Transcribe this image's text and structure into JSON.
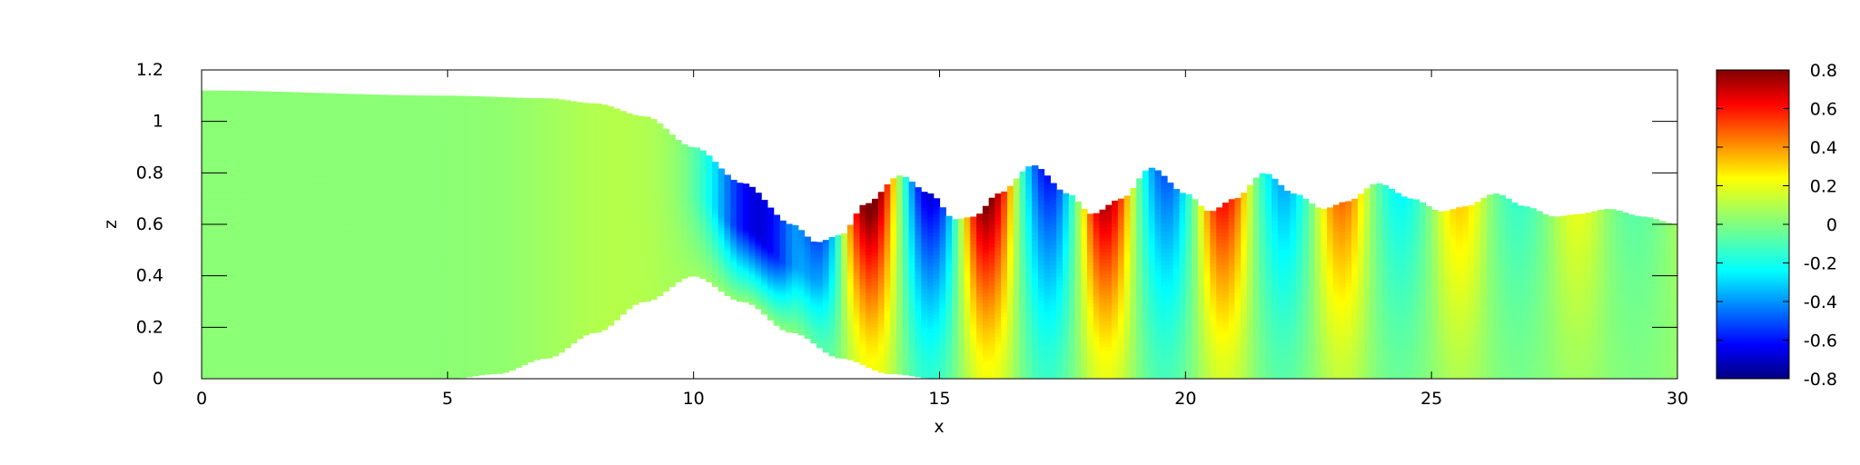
{
  "chart_data": {
    "type": "heatmap",
    "xlabel": "x",
    "ylabel": "z",
    "xlim": [
      0,
      30
    ],
    "ylim": [
      0,
      1.2
    ],
    "xticks": [
      "0",
      "5",
      "10",
      "15",
      "20",
      "25",
      "30"
    ],
    "yticks": [
      "0",
      "0.2",
      "0.4",
      "0.6",
      "0.8",
      "1",
      "1.2"
    ],
    "colorbar": {
      "range": [
        -0.8,
        0.8
      ],
      "ticks": [
        "-0.8",
        "-0.6",
        "-0.4",
        "-0.2",
        "0",
        "0.2",
        "0.4",
        "0.6",
        "0.8"
      ],
      "colormap": "jet"
    },
    "bottom_boundary": {
      "x": [
        0,
        5,
        6,
        7,
        8,
        9,
        10,
        11,
        12,
        13,
        14,
        15,
        30
      ],
      "z": [
        0,
        0,
        0.02,
        0.08,
        0.18,
        0.3,
        0.4,
        0.3,
        0.18,
        0.08,
        0.02,
        0,
        0
      ]
    },
    "free_surface": {
      "x": [
        0,
        5,
        7,
        8,
        9,
        10,
        11,
        12,
        12.5,
        13,
        13.5,
        14.2,
        14.8,
        15.3,
        15.7,
        16.2,
        16.9,
        17.6,
        18.1,
        18.7,
        19.3,
        20,
        20.5,
        21,
        21.6,
        22.2,
        22.8,
        23.3,
        23.9,
        24.6,
        25.2,
        25.7,
        26.3,
        26.9,
        27.5,
        28,
        28.6,
        29.3,
        30
      ],
      "z": [
        1.12,
        1.1,
        1.09,
        1.07,
        1.02,
        0.9,
        0.76,
        0.6,
        0.53,
        0.56,
        0.68,
        0.79,
        0.72,
        0.62,
        0.63,
        0.72,
        0.83,
        0.72,
        0.64,
        0.7,
        0.82,
        0.72,
        0.65,
        0.7,
        0.8,
        0.72,
        0.66,
        0.69,
        0.76,
        0.7,
        0.65,
        0.67,
        0.72,
        0.67,
        0.63,
        0.64,
        0.66,
        0.63,
        0.6
      ]
    },
    "field_description": {
      "wave_start_x": 12.5,
      "wave_end_x": 30,
      "wavelength": 2.4,
      "crest_amplitude": [
        0.85,
        0.8,
        0.72,
        0.6,
        0.45,
        0.3,
        0.18,
        0.1
      ],
      "trough_amplitude": [
        -0.75,
        -0.7,
        -0.6,
        -0.48,
        -0.35,
        -0.22,
        -0.13,
        -0.07
      ],
      "downstream_x": [
        13.2,
        15.6,
        18.0,
        20.4,
        22.8,
        25.2,
        27.6,
        30.0
      ],
      "slope_min_value": -0.7,
      "slope_min_x": 11.3
    }
  }
}
